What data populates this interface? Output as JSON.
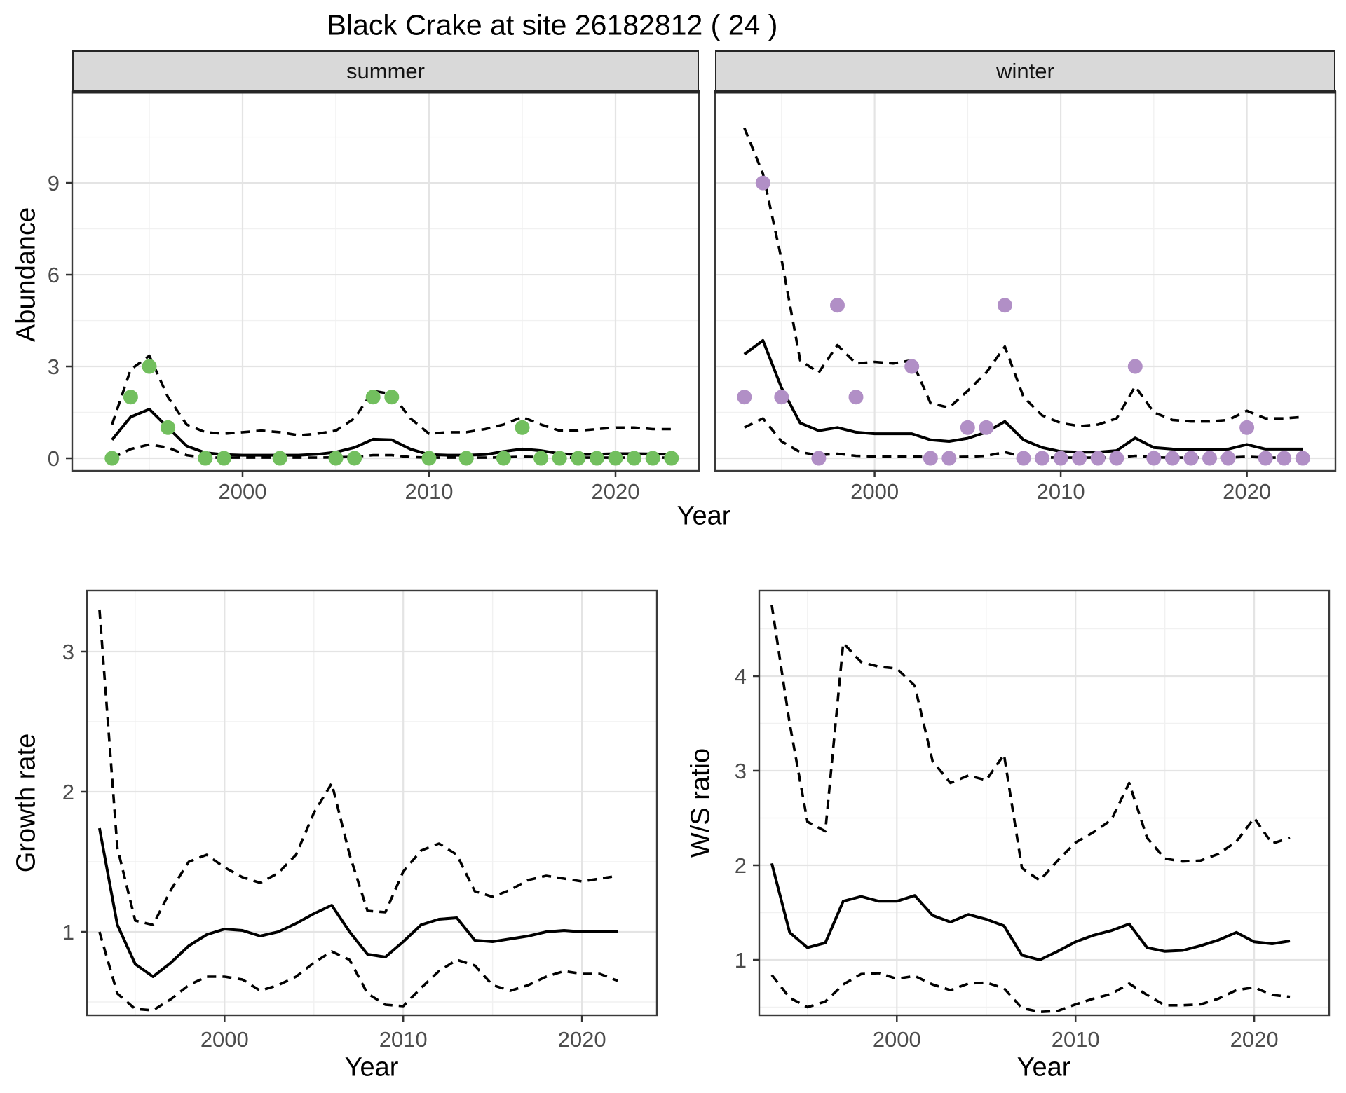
{
  "title": "Black Crake at site 26182812 ( 24 )",
  "facets": [
    "summer",
    "winter"
  ],
  "labels": {
    "year": "Year",
    "abundance": "Abundance",
    "growth_rate": "Growth rate",
    "ws_ratio": "W/S ratio"
  },
  "colors": {
    "summer_point": "#72bf5e",
    "winter_point": "#b18fc6",
    "line": "#000000",
    "grid_major": "#e4e4e4",
    "grid_minor": "#f1f1f1",
    "panel_border": "#3a3a3a",
    "strip_fill": "#d9d9d9",
    "tick_label": "#4d4d4d"
  },
  "chart_data": [
    {
      "type": "line",
      "facet": "summer",
      "xlabel": "Year",
      "ylabel": "Abundance",
      "x_ticks": [
        2000,
        2010,
        2020
      ],
      "x_tick_labels": [
        "2000",
        "2010",
        "2020"
      ],
      "x_minor": [
        1995,
        2005,
        2015
      ],
      "y_ticks": [
        0,
        3,
        6,
        9
      ],
      "y_tick_labels": [
        "0",
        "3",
        "6",
        "9"
      ],
      "y_minor": [
        1.5,
        4.5,
        7.5,
        10.5
      ],
      "y_labels_shown": true,
      "xlim": [
        1991,
        2024.6
      ],
      "ylim": [
        -0.42,
        12
      ],
      "x": [
        1993,
        1994,
        1995,
        1996,
        1997,
        1998,
        1999,
        2000,
        2001,
        2002,
        2003,
        2004,
        2005,
        2006,
        2007,
        2008,
        2009,
        2010,
        2011,
        2012,
        2013,
        2014,
        2015,
        2016,
        2017,
        2018,
        2019,
        2020,
        2021,
        2022,
        2023
      ],
      "series": [
        {
          "name": "ci_lower",
          "style": "dashed",
          "values": [
            0.0,
            0.3,
            0.45,
            0.35,
            0.1,
            0.02,
            0.02,
            0.02,
            0.02,
            0.02,
            0.02,
            0.02,
            0.03,
            0.05,
            0.1,
            0.1,
            0.04,
            0.02,
            0.02,
            0.02,
            0.02,
            0.03,
            0.05,
            0.04,
            0.02,
            0.02,
            0.02,
            0.02,
            0.02,
            0.02,
            0.02
          ]
        },
        {
          "name": "ci_upper",
          "style": "dashed",
          "values": [
            1.1,
            2.9,
            3.35,
            2.0,
            1.1,
            0.85,
            0.8,
            0.85,
            0.9,
            0.85,
            0.75,
            0.8,
            0.9,
            1.3,
            2.2,
            2.1,
            1.3,
            0.8,
            0.85,
            0.85,
            0.95,
            1.1,
            1.35,
            1.1,
            0.9,
            0.9,
            0.95,
            1.0,
            1.0,
            0.95,
            0.95
          ]
        },
        {
          "name": "median",
          "style": "solid",
          "values": [
            0.6,
            1.35,
            1.6,
            1.0,
            0.4,
            0.18,
            0.12,
            0.1,
            0.1,
            0.1,
            0.1,
            0.13,
            0.2,
            0.35,
            0.62,
            0.6,
            0.3,
            0.12,
            0.1,
            0.1,
            0.12,
            0.22,
            0.3,
            0.25,
            0.15,
            0.12,
            0.13,
            0.15,
            0.15,
            0.14,
            0.13
          ]
        }
      ],
      "points": {
        "name": "observed-counts-summer",
        "color_key": "summer_point",
        "x": [
          1993,
          1994,
          1995,
          1996,
          1998,
          1999,
          2002,
          2005,
          2006,
          2007,
          2008,
          2010,
          2012,
          2014,
          2015,
          2016,
          2017,
          2018,
          2019,
          2020,
          2021,
          2022,
          2023
        ],
        "y": [
          0,
          2,
          3,
          1,
          0,
          0,
          0,
          0,
          0,
          2,
          2,
          0,
          0,
          0,
          1,
          0,
          0,
          0,
          0,
          0,
          0,
          0,
          0
        ]
      }
    },
    {
      "type": "line",
      "facet": "winter",
      "xlabel": "Year",
      "ylabel": "Abundance",
      "x_ticks": [
        2000,
        2010,
        2020
      ],
      "x_tick_labels": [
        "2000",
        "2010",
        "2020"
      ],
      "x_minor": [
        1995,
        2005,
        2015
      ],
      "y_ticks": [
        0,
        3,
        6,
        9
      ],
      "y_tick_labels": [],
      "y_minor": [
        1.5,
        4.5,
        7.5,
        10.5
      ],
      "y_labels_shown": false,
      "xlim": [
        1991.4,
        2024.8
      ],
      "ylim": [
        -0.42,
        12
      ],
      "x": [
        1993,
        1994,
        1995,
        1996,
        1997,
        1998,
        1999,
        2000,
        2001,
        2002,
        2003,
        2004,
        2005,
        2006,
        2007,
        2008,
        2009,
        2010,
        2011,
        2012,
        2013,
        2014,
        2015,
        2016,
        2017,
        2018,
        2019,
        2020,
        2021,
        2022,
        2023
      ],
      "series": [
        {
          "name": "ci_lower",
          "style": "dashed",
          "values": [
            1.0,
            1.3,
            0.55,
            0.2,
            0.1,
            0.15,
            0.08,
            0.06,
            0.06,
            0.06,
            0.04,
            0.04,
            0.05,
            0.08,
            0.2,
            0.05,
            0.03,
            0.02,
            0.02,
            0.02,
            0.02,
            0.08,
            0.03,
            0.02,
            0.02,
            0.02,
            0.02,
            0.05,
            0.02,
            0.02,
            0.02
          ]
        },
        {
          "name": "ci_upper",
          "style": "dashed",
          "values": [
            10.8,
            9.3,
            6.5,
            3.2,
            2.8,
            3.7,
            3.1,
            3.15,
            3.1,
            3.2,
            1.8,
            1.65,
            2.2,
            2.8,
            3.65,
            2.0,
            1.4,
            1.15,
            1.05,
            1.1,
            1.3,
            2.35,
            1.5,
            1.25,
            1.2,
            1.2,
            1.25,
            1.55,
            1.3,
            1.3,
            1.35
          ]
        },
        {
          "name": "median",
          "style": "solid",
          "values": [
            3.4,
            3.85,
            2.3,
            1.15,
            0.9,
            1.0,
            0.85,
            0.8,
            0.8,
            0.8,
            0.6,
            0.55,
            0.65,
            0.85,
            1.2,
            0.6,
            0.35,
            0.22,
            0.2,
            0.2,
            0.25,
            0.66,
            0.35,
            0.3,
            0.28,
            0.28,
            0.3,
            0.45,
            0.3,
            0.3,
            0.3
          ]
        }
      ],
      "points": {
        "name": "observed-counts-winter",
        "color_key": "winter_point",
        "x": [
          1993,
          1994,
          1995,
          1997,
          1998,
          1999,
          2002,
          2003,
          2004,
          2005,
          2006,
          2007,
          2008,
          2009,
          2010,
          2011,
          2012,
          2013,
          2014,
          2015,
          2016,
          2017,
          2018,
          2019,
          2020,
          2021,
          2022,
          2023
        ],
        "y": [
          2,
          9,
          2,
          0,
          5,
          2,
          3,
          0,
          0,
          1,
          1,
          5,
          0,
          0,
          0,
          0,
          0,
          0,
          3,
          0,
          0,
          0,
          0,
          0,
          1,
          0,
          0,
          0
        ]
      }
    },
    {
      "type": "line",
      "facet": "growth-rate",
      "xlabel": "Year",
      "ylabel": "Growth rate",
      "x_ticks": [
        2000,
        2010,
        2020
      ],
      "x_tick_labels": [
        "2000",
        "2010",
        "2020"
      ],
      "x_minor": [
        1995,
        2005,
        2015
      ],
      "y_ticks": [
        1,
        2,
        3
      ],
      "y_tick_labels": [
        "1",
        "2",
        "3"
      ],
      "y_minor": [
        0.5,
        1.5,
        2.5
      ],
      "y_labels_shown": true,
      "xlim": [
        1992.3,
        2024.2
      ],
      "ylim": [
        0.41,
        3.44
      ],
      "x": [
        1993,
        1994,
        1995,
        1996,
        1997,
        1998,
        1999,
        2000,
        2001,
        2002,
        2003,
        2004,
        2005,
        2006,
        2007,
        2008,
        2009,
        2010,
        2011,
        2012,
        2013,
        2014,
        2015,
        2016,
        2017,
        2018,
        2019,
        2020,
        2021,
        2022
      ],
      "series": [
        {
          "name": "ci_lower",
          "style": "dashed",
          "values": [
            1.0,
            0.56,
            0.45,
            0.44,
            0.52,
            0.62,
            0.68,
            0.68,
            0.66,
            0.58,
            0.62,
            0.68,
            0.78,
            0.86,
            0.8,
            0.56,
            0.48,
            0.47,
            0.6,
            0.72,
            0.8,
            0.76,
            0.62,
            0.58,
            0.62,
            0.68,
            0.72,
            0.7,
            0.7,
            0.65
          ]
        },
        {
          "name": "ci_upper",
          "style": "dashed",
          "values": [
            3.3,
            1.6,
            1.08,
            1.05,
            1.3,
            1.5,
            1.55,
            1.46,
            1.39,
            1.35,
            1.42,
            1.55,
            1.85,
            2.06,
            1.55,
            1.15,
            1.14,
            1.43,
            1.58,
            1.63,
            1.55,
            1.29,
            1.25,
            1.3,
            1.37,
            1.4,
            1.38,
            1.36,
            1.38,
            1.4
          ]
        },
        {
          "name": "median",
          "style": "solid",
          "values": [
            1.74,
            1.05,
            0.77,
            0.68,
            0.78,
            0.9,
            0.98,
            1.02,
            1.01,
            0.97,
            1.0,
            1.06,
            1.13,
            1.19,
            1.0,
            0.84,
            0.82,
            0.93,
            1.05,
            1.09,
            1.1,
            0.94,
            0.93,
            0.95,
            0.97,
            1.0,
            1.01,
            1.0,
            1.0,
            1.0
          ]
        }
      ],
      "points": null
    },
    {
      "type": "line",
      "facet": "ws-ratio",
      "xlabel": "Year",
      "ylabel": "W/S ratio",
      "x_ticks": [
        2000,
        2010,
        2020
      ],
      "x_tick_labels": [
        "2000",
        "2010",
        "2020"
      ],
      "x_minor": [
        1995,
        2005,
        2015
      ],
      "y_ticks": [
        1,
        2,
        3,
        4
      ],
      "y_tick_labels": [
        "1",
        "2",
        "3",
        "4"
      ],
      "y_minor": [
        0.5,
        1.5,
        2.5,
        3.5,
        4.5
      ],
      "y_labels_shown": true,
      "xlim": [
        1992.3,
        2024.2
      ],
      "ylim": [
        0.31,
        4.9
      ],
      "x": [
        1993,
        1994,
        1995,
        1996,
        1997,
        1998,
        1999,
        2000,
        2001,
        2002,
        2003,
        2004,
        2005,
        2006,
        2007,
        2008,
        2009,
        2010,
        2011,
        2012,
        2013,
        2014,
        2015,
        2016,
        2017,
        2018,
        2019,
        2020,
        2021,
        2022
      ],
      "series": [
        {
          "name": "ci_lower",
          "style": "dashed",
          "values": [
            0.84,
            0.6,
            0.5,
            0.56,
            0.74,
            0.85,
            0.86,
            0.8,
            0.83,
            0.74,
            0.68,
            0.75,
            0.76,
            0.7,
            0.49,
            0.45,
            0.46,
            0.53,
            0.59,
            0.64,
            0.75,
            0.63,
            0.52,
            0.52,
            0.53,
            0.59,
            0.68,
            0.71,
            0.63,
            0.61
          ]
        },
        {
          "name": "ci_upper",
          "style": "dashed",
          "values": [
            4.75,
            3.5,
            2.46,
            2.36,
            4.35,
            4.15,
            4.1,
            4.08,
            3.9,
            3.1,
            2.87,
            2.95,
            2.9,
            3.17,
            1.97,
            1.84,
            2.05,
            2.24,
            2.35,
            2.48,
            2.87,
            2.29,
            2.07,
            2.04,
            2.05,
            2.12,
            2.25,
            2.5,
            2.23,
            2.29
          ]
        },
        {
          "name": "median",
          "style": "solid",
          "values": [
            2.02,
            1.29,
            1.13,
            1.18,
            1.62,
            1.67,
            1.62,
            1.62,
            1.68,
            1.47,
            1.4,
            1.48,
            1.43,
            1.36,
            1.05,
            1.0,
            1.09,
            1.19,
            1.26,
            1.31,
            1.38,
            1.13,
            1.09,
            1.1,
            1.15,
            1.21,
            1.29,
            1.19,
            1.17,
            1.2
          ]
        }
      ],
      "points": null
    }
  ]
}
